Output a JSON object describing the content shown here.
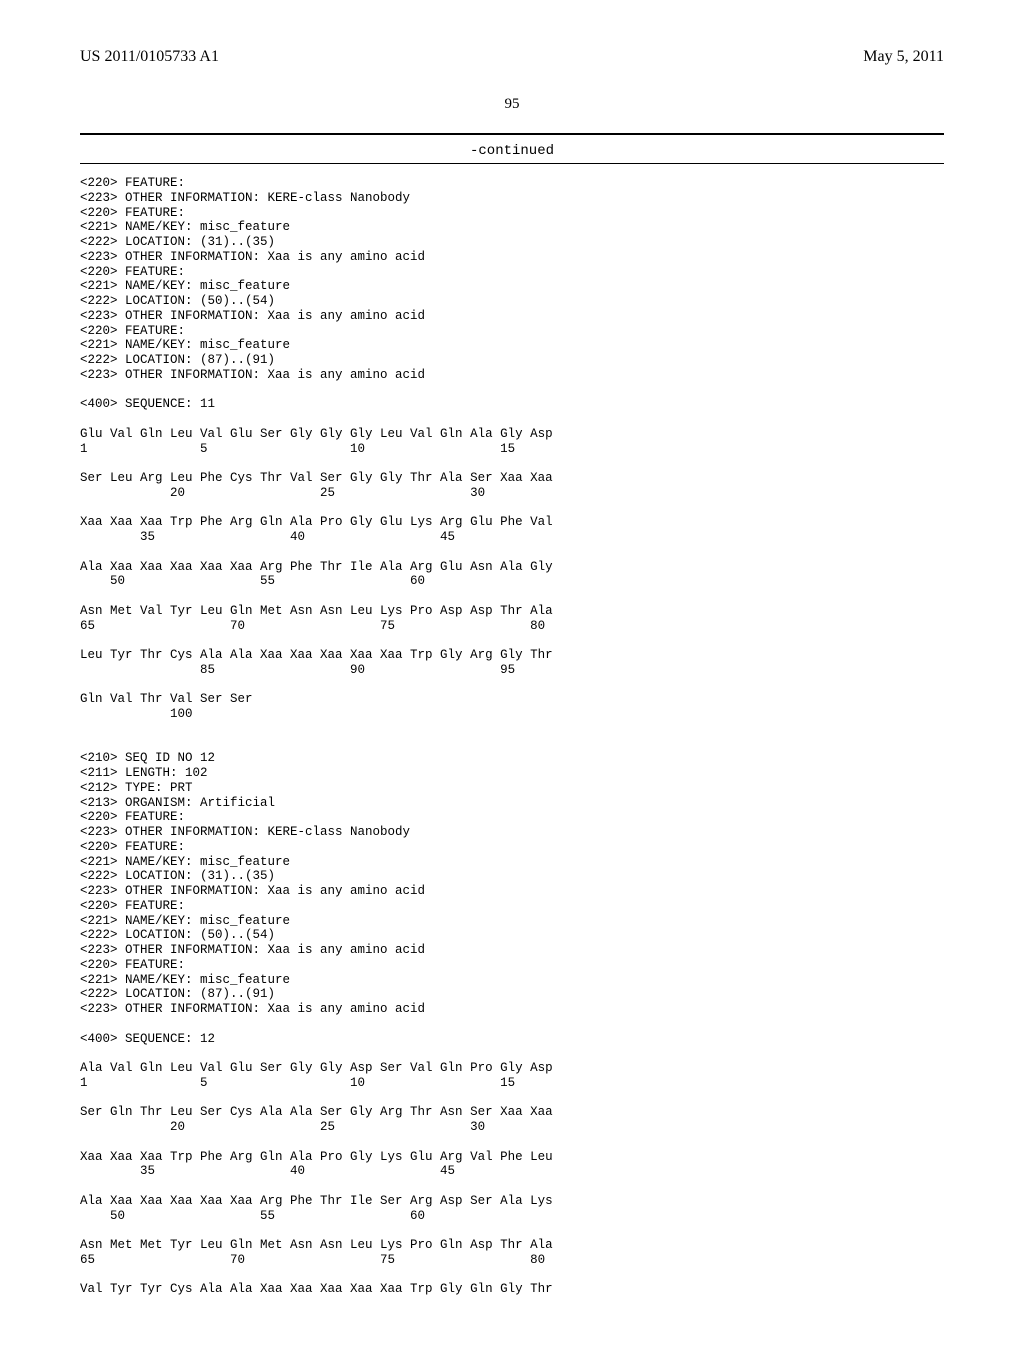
{
  "header": {
    "pub_number": "US 2011/0105733 A1",
    "pub_date": "May 5, 2011"
  },
  "page_number": "95",
  "continued_label": "-continued",
  "seq_listing_text": "<220> FEATURE:\n<223> OTHER INFORMATION: KERE-class Nanobody\n<220> FEATURE:\n<221> NAME/KEY: misc_feature\n<222> LOCATION: (31)..(35)\n<223> OTHER INFORMATION: Xaa is any amino acid\n<220> FEATURE:\n<221> NAME/KEY: misc_feature\n<222> LOCATION: (50)..(54)\n<223> OTHER INFORMATION: Xaa is any amino acid\n<220> FEATURE:\n<221> NAME/KEY: misc_feature\n<222> LOCATION: (87)..(91)\n<223> OTHER INFORMATION: Xaa is any amino acid\n\n<400> SEQUENCE: 11\n\nGlu Val Gln Leu Val Glu Ser Gly Gly Gly Leu Val Gln Ala Gly Asp\n1               5                   10                  15\n\nSer Leu Arg Leu Phe Cys Thr Val Ser Gly Gly Thr Ala Ser Xaa Xaa\n            20                  25                  30\n\nXaa Xaa Xaa Trp Phe Arg Gln Ala Pro Gly Glu Lys Arg Glu Phe Val\n        35                  40                  45\n\nAla Xaa Xaa Xaa Xaa Xaa Arg Phe Thr Ile Ala Arg Glu Asn Ala Gly\n    50                  55                  60\n\nAsn Met Val Tyr Leu Gln Met Asn Asn Leu Lys Pro Asp Asp Thr Ala\n65                  70                  75                  80\n\nLeu Tyr Thr Cys Ala Ala Xaa Xaa Xaa Xaa Xaa Trp Gly Arg Gly Thr\n                85                  90                  95\n\nGln Val Thr Val Ser Ser\n            100\n\n\n<210> SEQ ID NO 12\n<211> LENGTH: 102\n<212> TYPE: PRT\n<213> ORGANISM: Artificial\n<220> FEATURE:\n<223> OTHER INFORMATION: KERE-class Nanobody\n<220> FEATURE:\n<221> NAME/KEY: misc_feature\n<222> LOCATION: (31)..(35)\n<223> OTHER INFORMATION: Xaa is any amino acid\n<220> FEATURE:\n<221> NAME/KEY: misc_feature\n<222> LOCATION: (50)..(54)\n<223> OTHER INFORMATION: Xaa is any amino acid\n<220> FEATURE:\n<221> NAME/KEY: misc_feature\n<222> LOCATION: (87)..(91)\n<223> OTHER INFORMATION: Xaa is any amino acid\n\n<400> SEQUENCE: 12\n\nAla Val Gln Leu Val Glu Ser Gly Gly Asp Ser Val Gln Pro Gly Asp\n1               5                   10                  15\n\nSer Gln Thr Leu Ser Cys Ala Ala Ser Gly Arg Thr Asn Ser Xaa Xaa\n            20                  25                  30\n\nXaa Xaa Xaa Trp Phe Arg Gln Ala Pro Gly Lys Glu Arg Val Phe Leu\n        35                  40                  45\n\nAla Xaa Xaa Xaa Xaa Xaa Arg Phe Thr Ile Ser Arg Asp Ser Ala Lys\n    50                  55                  60\n\nAsn Met Met Tyr Leu Gln Met Asn Asn Leu Lys Pro Gln Asp Thr Ala\n65                  70                  75                  80\n\nVal Tyr Tyr Cys Ala Ala Xaa Xaa Xaa Xaa Xaa Trp Gly Gln Gly Thr"
}
